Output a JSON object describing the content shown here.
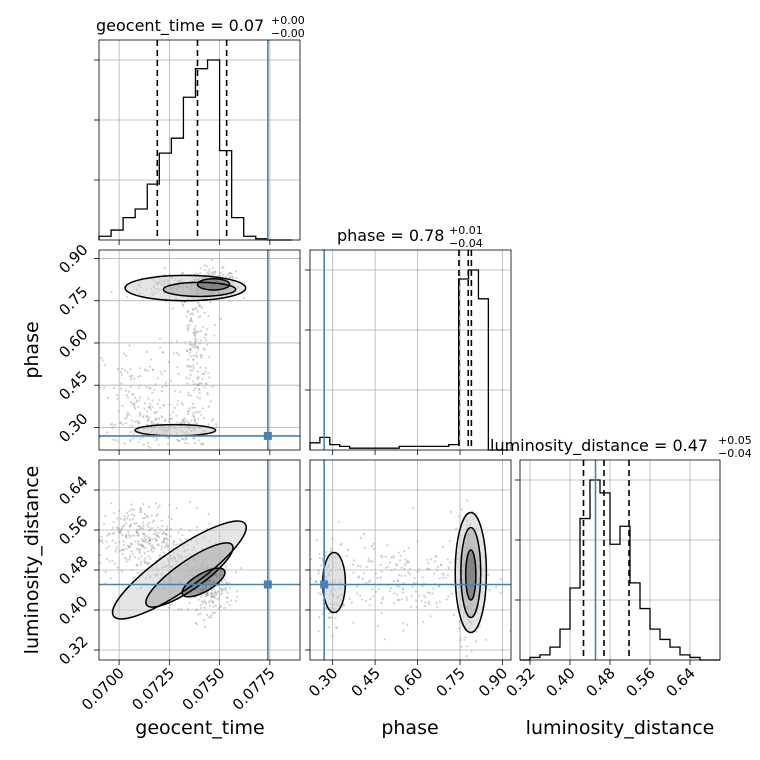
{
  "chart_data": {
    "type": "corner",
    "parameters": [
      "geocent_time",
      "phase",
      "luminosity_distance"
    ],
    "axis_labels": [
      "geocent_time",
      "phase",
      "luminosity_distance"
    ],
    "titles": [
      {
        "name": "geocent_time",
        "median": "0.07",
        "plus": "+0.00",
        "minus": "−0.00"
      },
      {
        "name": "phase",
        "median": "0.78",
        "plus": "+0.01",
        "minus": "−0.04"
      },
      {
        "name": "luminosity_distance",
        "median": "0.47",
        "plus": "+0.05",
        "minus": "−0.04"
      }
    ],
    "ranges": [
      [
        0.069,
        0.079
      ],
      [
        0.22,
        0.93
      ],
      [
        0.3,
        0.7
      ]
    ],
    "ticks": [
      {
        "values": [
          0.07,
          0.0725,
          0.075,
          0.0775
        ],
        "labels": [
          "0.0700",
          "0.0725",
          "0.0750",
          "0.0775"
        ]
      },
      {
        "values": [
          0.3,
          0.45,
          0.6,
          0.75,
          0.9
        ],
        "labels": [
          "0.30",
          "0.45",
          "0.60",
          "0.75",
          "0.90"
        ]
      },
      {
        "values": [
          0.32,
          0.4,
          0.48,
          0.56,
          0.64
        ],
        "labels": [
          "0.32",
          "0.40",
          "0.48",
          "0.56",
          "0.64"
        ]
      }
    ],
    "truths": [
      0.0774,
      0.27,
      0.451
    ],
    "quantiles": [
      [
        0.0719,
        0.0739,
        0.07535
      ],
      [
        0.746,
        0.779,
        0.79
      ],
      [
        0.427,
        0.468,
        0.518
      ]
    ],
    "histograms": [
      {
        "param": "geocent_time",
        "bin_edges": [
          0.069,
          0.0696,
          0.0702,
          0.0708,
          0.0714,
          0.072,
          0.0726,
          0.0732,
          0.0738,
          0.0744,
          0.075,
          0.0756,
          0.0762,
          0.0768,
          0.0774,
          0.078,
          0.0786
        ],
        "counts": [
          3,
          8,
          18,
          25,
          45,
          70,
          82,
          115,
          138,
          145,
          72,
          18,
          3,
          1,
          0,
          0
        ]
      },
      {
        "param": "phase",
        "bin_edges": [
          0.22,
          0.255,
          0.29,
          0.325,
          0.36,
          0.395,
          0.43,
          0.465,
          0.5,
          0.535,
          0.57,
          0.605,
          0.64,
          0.675,
          0.71,
          0.745,
          0.78,
          0.815,
          0.85,
          0.885,
          0.92
        ],
        "counts": [
          4,
          7,
          3,
          2,
          1,
          1,
          1,
          1,
          1,
          2,
          2,
          2,
          2,
          2,
          3,
          95,
          100,
          84,
          0,
          0
        ]
      },
      {
        "param": "luminosity_distance",
        "bin_edges": [
          0.3,
          0.32,
          0.34,
          0.36,
          0.38,
          0.4,
          0.42,
          0.44,
          0.46,
          0.48,
          0.5,
          0.52,
          0.54,
          0.56,
          0.58,
          0.6,
          0.62,
          0.64,
          0.66,
          0.68,
          0.7
        ],
        "counts": [
          0,
          1,
          2,
          5,
          12,
          28,
          55,
          70,
          65,
          45,
          52,
          30,
          20,
          12,
          8,
          5,
          2,
          1,
          0,
          0
        ]
      }
    ],
    "grid": true,
    "colors": {
      "truth": "#4682b4",
      "contour": "#000000",
      "samples": "#9a9a9a",
      "grid": "#b0b0b0"
    }
  }
}
